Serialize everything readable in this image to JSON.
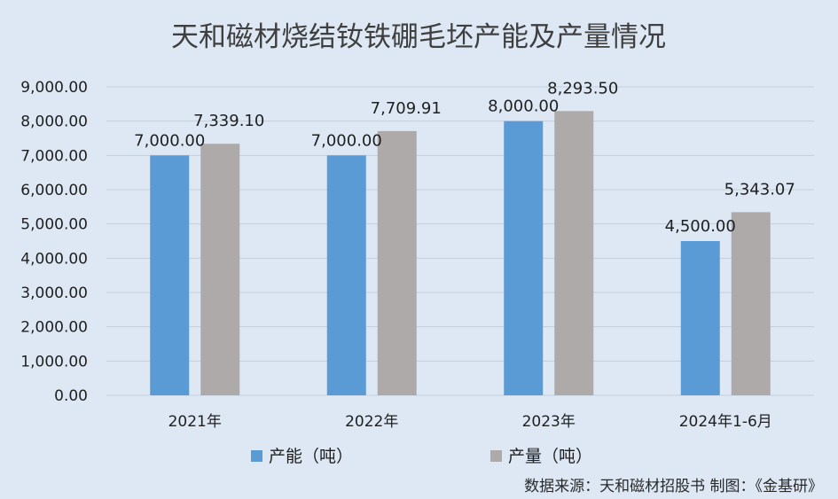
{
  "chart_data": {
    "type": "bar",
    "title": "天和磁材烧结钕铁硼毛坯产能及产量情况",
    "categories": [
      "2021年",
      "2022年",
      "2023年",
      "2024年1-6月"
    ],
    "series": [
      {
        "name": "产能（吨）",
        "values": [
          7000.0,
          7000.0,
          8000.0,
          4500.0
        ],
        "labels": [
          "7,000.00",
          "7,000.00",
          "8,000.00",
          "4,500.00"
        ],
        "color": "#5b9bd5"
      },
      {
        "name": "产量（吨）",
        "values": [
          7339.1,
          7709.91,
          8293.5,
          5343.07
        ],
        "labels": [
          "7,339.10",
          "7,709.91",
          "8,293.50",
          "5,343.07"
        ],
        "color": "#aeaaaa"
      }
    ],
    "ylim": [
      0,
      9000
    ],
    "yticks": [
      0,
      1000,
      2000,
      3000,
      4000,
      5000,
      6000,
      7000,
      8000,
      9000
    ],
    "ytick_labels": [
      "0.00",
      "1,000.00",
      "2,000.00",
      "3,000.00",
      "4,000.00",
      "5,000.00",
      "6,000.00",
      "7,000.00",
      "8,000.00",
      "9,000.00"
    ],
    "grid": true,
    "legend_position": "bottom",
    "source_note": "数据来源：天和磁材招股书  制图：《金基研》"
  }
}
